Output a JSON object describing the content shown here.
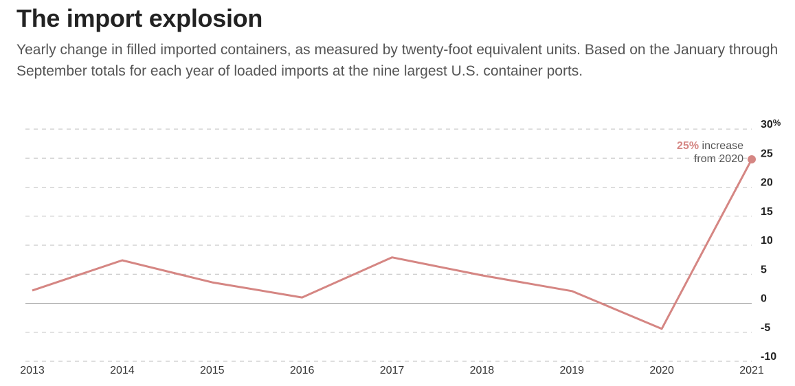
{
  "header": {
    "title": "The import explosion",
    "subtitle": "Yearly change in filled imported containers, as measured by twenty-foot equivalent units. Based on the January through September totals for each year of loaded imports at the nine largest U.S. container ports."
  },
  "chart_data": {
    "type": "line",
    "title": "The import explosion",
    "xlabel": "",
    "ylabel": "",
    "x": [
      "2013",
      "2014",
      "2015",
      "2016",
      "2017",
      "2018",
      "2019",
      "2020",
      "2021"
    ],
    "series": [
      {
        "values": [
          2.2,
          7.4,
          3.6,
          1.0,
          7.9,
          4.8,
          2.1,
          -4.4,
          24.8
        ]
      }
    ],
    "ylim": [
      -10,
      30
    ],
    "yticks": [
      30,
      25,
      20,
      15,
      10,
      5,
      0,
      -5,
      -10
    ],
    "ytick_labels": [
      "30",
      "25",
      "20",
      "15",
      "10",
      "5",
      "0",
      "-5",
      "-10"
    ],
    "ytick_unit": "%",
    "grid": true,
    "line_color": "#d58683",
    "annotation": {
      "highlight": "25%",
      "text_line1": " increase",
      "text_line2": "from 2020"
    }
  }
}
